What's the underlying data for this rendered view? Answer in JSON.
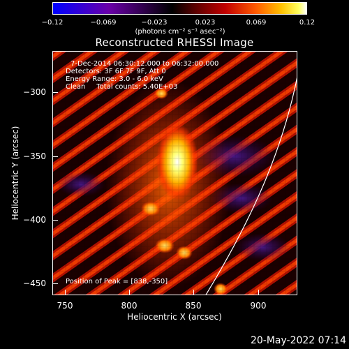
{
  "colorbar": {
    "ticks": [
      "−0.12",
      "−0.069",
      "−0.023",
      "0.023",
      "0.069",
      "0.12"
    ],
    "unit_label": "(photons cm⁻² s⁻¹ asec⁻²)"
  },
  "title": "Reconstructed RHESSI Image",
  "info": {
    "time_range": "7-Dec-2014 06:30:12.000 to 06:32:00.000",
    "detectors": "Detectors: 3F 6F 7F 9F, Att 0",
    "energy": "Energy Range: 3.0 - 6.0 keV",
    "clean": "Clean     Total counts: 5.40E+03",
    "peak": "Position of Peak = [838,-350]"
  },
  "axes": {
    "xlabel": "Heliocentric X (arcsec)",
    "ylabel": "Heliocentric Y (arcsec)",
    "xticks": [
      "750",
      "800",
      "850",
      "900"
    ],
    "yticks": [
      "−300",
      "−350",
      "−400",
      "−450"
    ],
    "xrange": [
      740,
      930
    ],
    "yrange": [
      -280,
      -460
    ]
  },
  "footer": {
    "timestamp": "20-May-2022 07:14"
  },
  "colors": {
    "background": "#000000",
    "foreground": "#ffffff",
    "limb": "#ffffff"
  }
}
